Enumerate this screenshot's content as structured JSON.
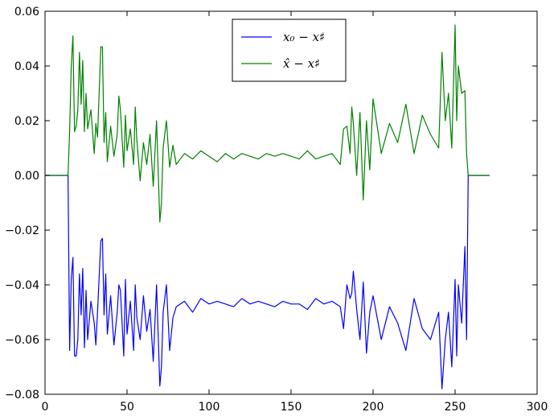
{
  "chart_data": {
    "type": "line",
    "title": "",
    "xlabel": "",
    "ylabel": "",
    "xlim": [
      0,
      300
    ],
    "ylim": [
      -0.08,
      0.06
    ],
    "xticks": [
      0,
      50,
      100,
      150,
      200,
      250,
      300
    ],
    "yticks": [
      -0.08,
      -0.06,
      -0.04,
      -0.02,
      0.0,
      0.02,
      0.04,
      0.06
    ],
    "xtick_labels": [
      "0",
      "50",
      "100",
      "150",
      "200",
      "250",
      "300"
    ],
    "ytick_labels": [
      "−0.08",
      "−0.06",
      "−0.04",
      "−0.02",
      "0.00",
      "0.02",
      "0.04",
      "0.06"
    ],
    "grid": false,
    "legend_position": "top-center",
    "series": [
      {
        "name": "x₀ − x♯",
        "color": "#0000ff",
        "x": [
          0,
          14,
          15,
          16,
          17,
          18,
          19,
          20,
          21,
          22,
          23,
          24,
          25,
          26,
          28,
          30,
          31,
          32,
          34,
          35,
          36,
          37,
          38,
          40,
          42,
          44,
          45,
          46,
          48,
          49,
          50,
          52,
          54,
          55,
          56,
          58,
          60,
          62,
          64,
          66,
          68,
          70,
          71,
          72,
          74,
          76,
          78,
          80,
          85,
          90,
          95,
          100,
          105,
          110,
          115,
          120,
          125,
          130,
          135,
          140,
          145,
          150,
          155,
          160,
          165,
          170,
          175,
          180,
          182,
          184,
          186,
          187,
          188,
          190,
          192,
          194,
          196,
          198,
          200,
          205,
          210,
          215,
          220,
          225,
          230,
          235,
          240,
          242,
          244,
          246,
          248,
          250,
          251,
          252,
          254,
          256,
          257,
          258,
          265,
          271
        ],
        "y": [
          -0.0,
          -0.0,
          -0.064,
          -0.038,
          -0.03,
          -0.066,
          -0.066,
          -0.06,
          -0.036,
          -0.051,
          -0.034,
          -0.063,
          -0.042,
          -0.06,
          -0.046,
          -0.054,
          -0.062,
          -0.05,
          -0.024,
          -0.023,
          -0.051,
          -0.036,
          -0.058,
          -0.044,
          -0.062,
          -0.05,
          -0.04,
          -0.042,
          -0.066,
          -0.038,
          -0.058,
          -0.046,
          -0.064,
          -0.04,
          -0.052,
          -0.06,
          -0.044,
          -0.057,
          -0.049,
          -0.068,
          -0.04,
          -0.077,
          -0.07,
          -0.05,
          -0.04,
          -0.064,
          -0.052,
          -0.048,
          -0.046,
          -0.05,
          -0.045,
          -0.047,
          -0.046,
          -0.047,
          -0.048,
          -0.045,
          -0.047,
          -0.046,
          -0.047,
          -0.048,
          -0.046,
          -0.047,
          -0.047,
          -0.049,
          -0.045,
          -0.047,
          -0.046,
          -0.048,
          -0.056,
          -0.04,
          -0.045,
          -0.043,
          -0.035,
          -0.049,
          -0.06,
          -0.039,
          -0.065,
          -0.05,
          -0.044,
          -0.06,
          -0.048,
          -0.054,
          -0.064,
          -0.045,
          -0.056,
          -0.06,
          -0.05,
          -0.078,
          -0.06,
          -0.05,
          -0.07,
          -0.038,
          -0.066,
          -0.04,
          -0.054,
          -0.026,
          -0.06,
          -0.0,
          -0.0,
          -0.0
        ]
      },
      {
        "name": "x̂ − x♯",
        "color": "#008000",
        "x": [
          0,
          14,
          15,
          16,
          17,
          18,
          19,
          20,
          21,
          22,
          23,
          24,
          25,
          26,
          28,
          30,
          31,
          32,
          34,
          35,
          36,
          37,
          38,
          40,
          42,
          44,
          45,
          46,
          48,
          49,
          50,
          52,
          54,
          55,
          56,
          58,
          60,
          62,
          64,
          66,
          68,
          70,
          71,
          72,
          74,
          76,
          78,
          80,
          85,
          90,
          95,
          100,
          105,
          110,
          115,
          120,
          125,
          130,
          135,
          140,
          145,
          150,
          155,
          160,
          165,
          170,
          175,
          180,
          182,
          184,
          186,
          187,
          188,
          190,
          192,
          194,
          196,
          198,
          200,
          205,
          210,
          215,
          220,
          225,
          230,
          235,
          240,
          242,
          244,
          246,
          248,
          250,
          251,
          252,
          254,
          256,
          257,
          258,
          265,
          271
        ],
        "y": [
          0.0,
          0.0,
          0.016,
          0.04,
          0.051,
          0.016,
          0.018,
          0.024,
          0.045,
          0.026,
          0.042,
          0.016,
          0.03,
          0.017,
          0.024,
          0.008,
          0.019,
          0.014,
          0.047,
          0.047,
          0.012,
          0.023,
          0.005,
          0.018,
          0.007,
          0.015,
          0.029,
          0.024,
          0.003,
          0.022,
          0.009,
          0.017,
          0.004,
          0.025,
          0.013,
          -0.002,
          0.012,
          0.004,
          0.015,
          -0.004,
          0.02,
          -0.017,
          -0.01,
          0.01,
          0.02,
          0.003,
          0.011,
          0.004,
          0.008,
          0.006,
          0.009,
          0.007,
          0.005,
          0.008,
          0.006,
          0.008,
          0.007,
          0.006,
          0.008,
          0.007,
          0.008,
          0.007,
          0.006,
          0.009,
          0.006,
          0.007,
          0.008,
          0.004,
          0.017,
          0.018,
          0.008,
          0.025,
          0.019,
          0.0,
          0.023,
          -0.009,
          0.02,
          0.002,
          0.028,
          0.008,
          0.019,
          0.012,
          0.026,
          0.008,
          0.022,
          0.015,
          0.01,
          0.045,
          0.02,
          0.03,
          0.01,
          0.055,
          0.02,
          0.04,
          0.03,
          0.031,
          0.008,
          0.0,
          0.0,
          0.0
        ]
      }
    ]
  }
}
